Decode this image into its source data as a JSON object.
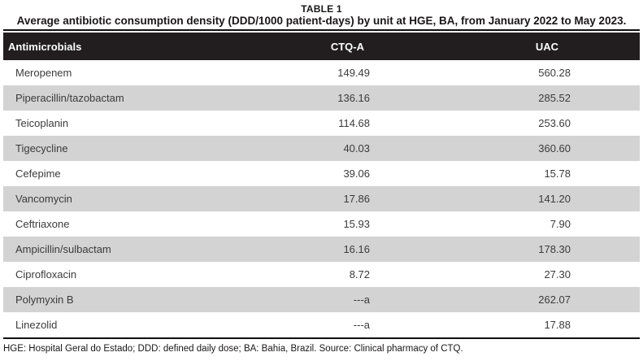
{
  "meta": {
    "label": "TABLE 1",
    "caption": "Average antibiotic consumption density (DDD/1000 patient-days) by unit at HGE, BA, from January 2022 to May 2023."
  },
  "chart_data": {
    "type": "table",
    "columns": [
      "Antimicrobials",
      "CTQ-A",
      "UAC"
    ],
    "rows": [
      {
        "name": "Meropenem",
        "ctq_a": "149.49",
        "uac": "560.28"
      },
      {
        "name": "Piperacillin/tazobactam",
        "ctq_a": "136.16",
        "uac": "285.52"
      },
      {
        "name": "Teicoplanin",
        "ctq_a": "114.68",
        "uac": "253.60"
      },
      {
        "name": "Tigecycline",
        "ctq_a": "40.03",
        "uac": "360.60"
      },
      {
        "name": "Cefepime",
        "ctq_a": "39.06",
        "uac": "15.78"
      },
      {
        "name": "Vancomycin",
        "ctq_a": "17.86",
        "uac": "141.20"
      },
      {
        "name": "Ceftriaxone",
        "ctq_a": "15.93",
        "uac": "7.90"
      },
      {
        "name": "Ampicillin/sulbactam",
        "ctq_a": "16.16",
        "uac": "178.30"
      },
      {
        "name": "Ciprofloxacin",
        "ctq_a": "8.72",
        "uac": "27.30"
      },
      {
        "name": "Polymyxin B",
        "ctq_a": "---a",
        "uac": "262.07"
      },
      {
        "name": "Linezolid",
        "ctq_a": "---a",
        "uac": "17.88"
      }
    ]
  },
  "footnote": "HGE: Hospital Geral do Estado; DDD: defined daily dose; BA: Bahia, Brazil. Source: Clinical pharmacy of CTQ.",
  "colors": {
    "header_bg": "#221e1f",
    "header_text": "#ffffff",
    "zebra_bg": "#d3d3d3",
    "body_text": "#3b3b3b",
    "rule_color": "#0f0f0f"
  }
}
